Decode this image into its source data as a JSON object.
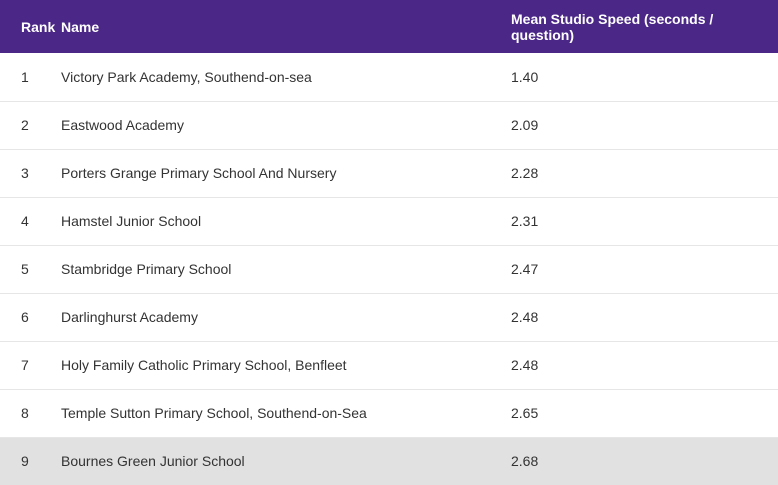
{
  "table": {
    "headers": {
      "rank": "Rank",
      "name": "Name",
      "speed": "Mean Studio Speed (seconds / question)"
    },
    "rows": [
      {
        "rank": "1",
        "name": "Victory Park Academy, Southend-on-sea",
        "speed": "1.40"
      },
      {
        "rank": "2",
        "name": "Eastwood Academy",
        "speed": "2.09"
      },
      {
        "rank": "3",
        "name": "Porters Grange Primary School And Nursery",
        "speed": "2.28"
      },
      {
        "rank": "4",
        "name": "Hamstel Junior School",
        "speed": "2.31"
      },
      {
        "rank": "5",
        "name": "Stambridge Primary School",
        "speed": "2.47"
      },
      {
        "rank": "6",
        "name": "Darlinghurst Academy",
        "speed": "2.48"
      },
      {
        "rank": "7",
        "name": "Holy Family Catholic Primary School, Benfleet",
        "speed": "2.48"
      },
      {
        "rank": "8",
        "name": "Temple Sutton Primary School, Southend-on-Sea",
        "speed": "2.65"
      },
      {
        "rank": "9",
        "name": "Bournes Green Junior School",
        "speed": "2.68"
      }
    ],
    "highlighted_row": 8
  },
  "colors": {
    "header_bg": "#4b2887",
    "header_text": "#ffffff",
    "highlight_bg": "#e1e1e1",
    "row_divider": "#e6e6e6"
  }
}
